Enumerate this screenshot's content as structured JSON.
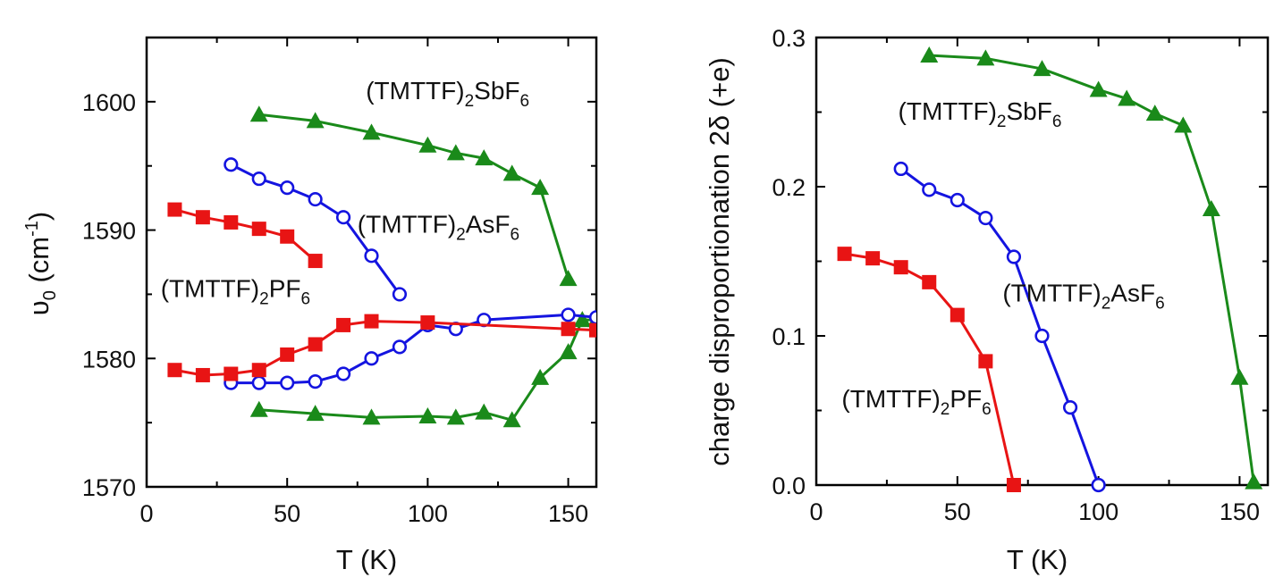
{
  "chart_data": [
    {
      "type": "line",
      "xlabel": "T (K)",
      "ylabel": {
        "main": "υ",
        "sub": "0",
        "unit_open": " (cm",
        "sup": "-1",
        "unit_close": ")"
      },
      "xlim": [
        0,
        160
      ],
      "ylim": [
        1570,
        1605
      ],
      "xticks": [
        0,
        50,
        100,
        150
      ],
      "yticks": [
        1570,
        1580,
        1590,
        1600
      ],
      "series": [
        {
          "name": "(TMTTF)2SbF6 upper",
          "color": "#1a8a1a",
          "marker": "triangle",
          "fill": true,
          "x": [
            40,
            60,
            80,
            100,
            110,
            120,
            130,
            140,
            150
          ],
          "y": [
            1599,
            1598.5,
            1597.6,
            1596.6,
            1596,
            1595.6,
            1594.4,
            1593.3,
            1586.2
          ]
        },
        {
          "name": "(TMTTF)2SbF6 lower",
          "color": "#1a8a1a",
          "marker": "triangle",
          "fill": true,
          "x": [
            40,
            60,
            80,
            100,
            110,
            120,
            130,
            140,
            150,
            155,
            160
          ],
          "y": [
            1576,
            1575.7,
            1575.4,
            1575.5,
            1575.4,
            1575.8,
            1575.2,
            1578.5,
            1580.5,
            1583,
            1583
          ]
        },
        {
          "name": "(TMTTF)2AsF6 upper",
          "color": "#1414e0",
          "marker": "circle",
          "fill": false,
          "x": [
            30,
            40,
            50,
            60,
            70,
            80,
            90
          ],
          "y": [
            1595.1,
            1594,
            1593.3,
            1592.4,
            1591,
            1588,
            1585
          ]
        },
        {
          "name": "(TMTTF)2AsF6 lower",
          "color": "#1414e0",
          "marker": "circle",
          "fill": false,
          "x": [
            30,
            40,
            50,
            60,
            70,
            80,
            90,
            100,
            110,
            120,
            150,
            160
          ],
          "y": [
            1578.1,
            1578.1,
            1578.1,
            1578.2,
            1578.8,
            1580,
            1580.9,
            1582.6,
            1582.3,
            1583,
            1583.4,
            1583.2
          ]
        },
        {
          "name": "(TMTTF)2PF6 upper",
          "color": "#e81414",
          "marker": "square",
          "fill": true,
          "x": [
            10,
            20,
            30,
            40,
            50,
            60
          ],
          "y": [
            1591.6,
            1591,
            1590.6,
            1590.1,
            1589.5,
            1587.6
          ]
        },
        {
          "name": "(TMTTF)2PF6 lower",
          "color": "#e81414",
          "marker": "square",
          "fill": true,
          "x": [
            10,
            20,
            30,
            40,
            50,
            60,
            70,
            80,
            100,
            150,
            160
          ],
          "y": [
            1579.1,
            1578.7,
            1578.8,
            1579.1,
            1580.3,
            1581.1,
            1582.6,
            1582.9,
            1582.8,
            1582.3,
            1582.2
          ]
        }
      ],
      "annotations": [
        {
          "pre": "(TMTTF)",
          "sub": "2",
          "mid": "SbF",
          "sub2": "6",
          "x": 78,
          "y": 1600.2
        },
        {
          "pre": "(TMTTF)",
          "sub": "2",
          "mid": "AsF",
          "sub2": "6",
          "x": 75,
          "y": 1589.8
        },
        {
          "pre": "(TMTTF)",
          "sub": "2",
          "mid": "PF",
          "sub2": "6",
          "x": 5,
          "y": 1584.8
        }
      ]
    },
    {
      "type": "line",
      "xlabel": "T (K)",
      "ylabel": {
        "main": "charge disproportionation 2δ (+e)"
      },
      "xlim": [
        0,
        160
      ],
      "ylim": [
        0,
        0.3
      ],
      "xticks": [
        0,
        50,
        100,
        150
      ],
      "yticks": [
        0.0,
        0.1,
        0.2,
        0.3
      ],
      "yticklabels": [
        "0.0",
        "0.1",
        "0.2",
        "0.3"
      ],
      "series": [
        {
          "name": "(TMTTF)2SbF6",
          "color": "#1a8a1a",
          "marker": "triangle",
          "fill": true,
          "x": [
            40,
            60,
            80,
            100,
            110,
            120,
            130,
            140,
            150,
            155
          ],
          "y": [
            0.288,
            0.286,
            0.279,
            0.265,
            0.259,
            0.249,
            0.241,
            0.185,
            0.072,
            0.002
          ]
        },
        {
          "name": "(TMTTF)2AsF6",
          "color": "#1414e0",
          "marker": "circle",
          "fill": false,
          "x": [
            30,
            40,
            50,
            60,
            70,
            80,
            90,
            100
          ],
          "y": [
            0.212,
            0.198,
            0.191,
            0.179,
            0.153,
            0.1,
            0.052,
            0.0
          ]
        },
        {
          "name": "(TMTTF)2PF6",
          "color": "#e81414",
          "marker": "square",
          "fill": true,
          "x": [
            10,
            20,
            30,
            40,
            50,
            60,
            70
          ],
          "y": [
            0.155,
            0.152,
            0.146,
            0.136,
            0.114,
            0.083,
            0.0
          ]
        }
      ],
      "annotations": [
        {
          "pre": "(TMTTF)",
          "sub": "2",
          "mid": "SbF",
          "sub2": "6",
          "x": 29,
          "y": 0.245
        },
        {
          "pre": "(TMTTF)",
          "sub": "2",
          "mid": "AsF",
          "sub2": "6",
          "x": 66,
          "y": 0.123
        },
        {
          "pre": "(TMTTF)",
          "sub": "2",
          "mid": "PF",
          "sub2": "6",
          "x": 9,
          "y": 0.052
        }
      ]
    }
  ]
}
